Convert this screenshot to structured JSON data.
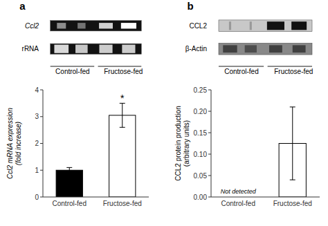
{
  "chart_data": [
    {
      "type": "bar",
      "title": "a",
      "categories": [
        "Control-fed",
        "Fructose-fed"
      ],
      "values": [
        1.0,
        3.05
      ],
      "errors": [
        0.1,
        0.45
      ],
      "colors": [
        "#000000",
        "#ffffff"
      ],
      "ylabel": "Ccl2 mRNA expression\n(fold increase)",
      "ylim": [
        0,
        4
      ],
      "yticks": [
        0,
        1,
        2,
        3,
        4
      ],
      "annotations": [
        {
          "text": "*",
          "category": 1
        },
        {
          "text": "Ccl2"
        },
        {
          "text": "rRNA"
        },
        {
          "text": "Control-fed"
        },
        {
          "text": "Fructose-fed"
        }
      ]
    },
    {
      "type": "bar",
      "title": "b",
      "categories": [
        "Control-fed",
        "Fructose-fed"
      ],
      "values": [
        0.0,
        0.125
      ],
      "errors": [
        0.0,
        0.085
      ],
      "colors": [
        "#ffffff",
        "#ffffff"
      ],
      "ylabel": "CCL2 protein production\n(arbitrary units)",
      "ylim": [
        0,
        0.25
      ],
      "yticks": [
        {
          "value": 0,
          "label": "0.00"
        },
        0.05,
        {
          "value": 0.1,
          "label": "0.10"
        },
        0.15,
        {
          "value": 0.2,
          "label": "0.20"
        },
        0.25
      ],
      "annotations": [
        {
          "text": "Not detected",
          "category": 0
        },
        {
          "text": "CCL2"
        },
        {
          "text": "β-Actin"
        },
        {
          "text": "Control-fed"
        },
        {
          "text": "Fructose-fed"
        }
      ]
    }
  ]
}
